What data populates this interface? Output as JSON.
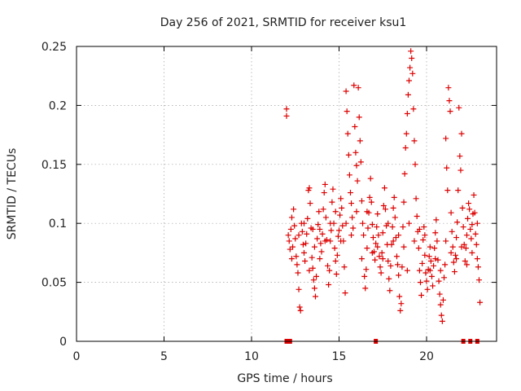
{
  "chart_data": {
    "type": "scatter",
    "title": "Day 256 of 2021, SRMTID for receiver ksu1",
    "xlabel": "GPS time / hours",
    "ylabel": "SRMTID / TECUs",
    "xlim": [
      0,
      24
    ],
    "ylim": [
      0,
      0.25
    ],
    "xticks": [
      0,
      5,
      10,
      15,
      20
    ],
    "xtick_labels": [
      "0",
      "5",
      "10",
      "15",
      "20"
    ],
    "yticks": [
      0,
      0.05,
      0.1,
      0.15,
      0.2,
      0.25
    ],
    "ytick_labels": [
      "0",
      "0.05",
      "0.1",
      "0.15",
      "0.2",
      "0.25"
    ],
    "grid": true,
    "marker": "+",
    "series": [
      {
        "name": "SRMTID",
        "color": "#dd0000",
        "points": [
          [
            12.0,
            0.197
          ],
          [
            12.0,
            0.191
          ],
          [
            12.1,
            0.09
          ],
          [
            12.15,
            0.085
          ],
          [
            12.2,
            0.078
          ],
          [
            12.25,
            0.095
          ],
          [
            12.3,
            0.105
          ],
          [
            12.35,
            0.08
          ],
          [
            12.4,
            0.112
          ],
          [
            12.45,
            0.098
          ],
          [
            12.5,
            0.087
          ],
          [
            12.55,
            0.072
          ],
          [
            12.6,
            0.065
          ],
          [
            12.65,
            0.058
          ],
          [
            12.7,
            0.044
          ],
          [
            12.75,
            0.029
          ],
          [
            12.8,
            0.026
          ],
          [
            12.85,
            0.1
          ],
          [
            12.9,
            0.093
          ],
          [
            12.95,
            0.082
          ],
          [
            13.0,
            0.075
          ],
          [
            13.05,
            0.068
          ],
          [
            13.1,
            0.083
          ],
          [
            13.15,
            0.091
          ],
          [
            13.2,
            0.104
          ],
          [
            13.25,
            0.128
          ],
          [
            13.3,
            0.13
          ],
          [
            13.35,
            0.117
          ],
          [
            13.4,
            0.096
          ],
          [
            13.45,
            0.071
          ],
          [
            13.5,
            0.062
          ],
          [
            13.55,
            0.052
          ],
          [
            13.6,
            0.045
          ],
          [
            13.65,
            0.038
          ],
          [
            13.7,
            0.055
          ],
          [
            13.75,
            0.087
          ],
          [
            13.8,
            0.099
          ],
          [
            13.85,
            0.11
          ],
          [
            13.9,
            0.095
          ],
          [
            13.95,
            0.083
          ],
          [
            14.0,
            0.076
          ],
          [
            14.05,
            0.091
          ],
          [
            14.1,
            0.112
          ],
          [
            14.15,
            0.126
          ],
          [
            14.2,
            0.133
          ],
          [
            14.25,
            0.105
          ],
          [
            14.3,
            0.086
          ],
          [
            14.35,
            0.064
          ],
          [
            14.4,
            0.048
          ],
          [
            14.45,
            0.06
          ],
          [
            14.5,
            0.085
          ],
          [
            14.55,
            0.094
          ],
          [
            14.6,
            0.118
          ],
          [
            14.65,
            0.129
          ],
          [
            14.7,
            0.1
          ],
          [
            14.75,
            0.079
          ],
          [
            14.8,
            0.068
          ],
          [
            14.85,
            0.057
          ],
          [
            14.9,
            0.073
          ],
          [
            14.95,
            0.089
          ],
          [
            15.0,
            0.094
          ],
          [
            15.05,
            0.107
          ],
          [
            15.1,
            0.121
          ],
          [
            15.15,
            0.113
          ],
          [
            15.2,
            0.098
          ],
          [
            15.25,
            0.085
          ],
          [
            15.3,
            0.063
          ],
          [
            15.35,
            0.041
          ],
          [
            15.4,
            0.212
          ],
          [
            15.45,
            0.195
          ],
          [
            15.5,
            0.176
          ],
          [
            15.55,
            0.158
          ],
          [
            15.6,
            0.141
          ],
          [
            15.65,
            0.126
          ],
          [
            15.7,
            0.117
          ],
          [
            15.75,
            0.105
          ],
          [
            15.8,
            0.096
          ],
          [
            15.85,
            0.217
          ],
          [
            15.9,
            0.182
          ],
          [
            15.95,
            0.16
          ],
          [
            16.0,
            0.149
          ],
          [
            16.05,
            0.136
          ],
          [
            16.1,
            0.215
          ],
          [
            16.15,
            0.19
          ],
          [
            16.2,
            0.17
          ],
          [
            16.25,
            0.152
          ],
          [
            16.3,
            0.119
          ],
          [
            16.35,
            0.1
          ],
          [
            16.4,
            0.09
          ],
          [
            16.45,
            0.055
          ],
          [
            16.5,
            0.045
          ],
          [
            16.55,
            0.061
          ],
          [
            16.6,
            0.079
          ],
          [
            16.65,
            0.096
          ],
          [
            16.7,
            0.109
          ],
          [
            16.75,
            0.122
          ],
          [
            16.8,
            0.138
          ],
          [
            16.85,
            0.118
          ],
          [
            16.9,
            0.099
          ],
          [
            16.95,
            0.088
          ],
          [
            17.0,
            0.076
          ],
          [
            17.05,
            0.069
          ],
          [
            17.1,
            0.083
          ],
          [
            17.15,
            0.097
          ],
          [
            17.2,
            0.108
          ],
          [
            17.25,
            0.09
          ],
          [
            17.3,
            0.072
          ],
          [
            17.35,
            0.063
          ],
          [
            17.4,
            0.058
          ],
          [
            17.45,
            0.075
          ],
          [
            17.5,
            0.092
          ],
          [
            17.55,
            0.115
          ],
          [
            17.6,
            0.13
          ],
          [
            17.65,
            0.112
          ],
          [
            17.7,
            0.098
          ],
          [
            17.75,
            0.082
          ],
          [
            17.8,
            0.068
          ],
          [
            17.85,
            0.053
          ],
          [
            17.9,
            0.043
          ],
          [
            17.95,
            0.064
          ],
          [
            18.0,
            0.082
          ],
          [
            18.05,
            0.097
          ],
          [
            18.1,
            0.113
          ],
          [
            18.15,
            0.122
          ],
          [
            18.2,
            0.105
          ],
          [
            18.25,
            0.088
          ],
          [
            18.3,
            0.072
          ],
          [
            18.35,
            0.065
          ],
          [
            18.4,
            0.056
          ],
          [
            18.45,
            0.038
          ],
          [
            18.5,
            0.026
          ],
          [
            18.55,
            0.032
          ],
          [
            18.6,
            0.063
          ],
          [
            18.65,
            0.097
          ],
          [
            18.7,
            0.118
          ],
          [
            18.75,
            0.142
          ],
          [
            18.8,
            0.164
          ],
          [
            18.85,
            0.176
          ],
          [
            18.9,
            0.193
          ],
          [
            18.95,
            0.209
          ],
          [
            19.0,
            0.221
          ],
          [
            19.05,
            0.232
          ],
          [
            19.1,
            0.246
          ],
          [
            19.15,
            0.24
          ],
          [
            19.2,
            0.227
          ],
          [
            19.25,
            0.197
          ],
          [
            19.3,
            0.17
          ],
          [
            19.35,
            0.15
          ],
          [
            19.4,
            0.121
          ],
          [
            19.45,
            0.106
          ],
          [
            19.5,
            0.093
          ],
          [
            19.55,
            0.079
          ],
          [
            19.6,
            0.06
          ],
          [
            19.65,
            0.05
          ],
          [
            19.7,
            0.039
          ],
          [
            19.75,
            0.066
          ],
          [
            19.8,
            0.086
          ],
          [
            19.85,
            0.097
          ],
          [
            19.9,
            0.073
          ],
          [
            19.95,
            0.058
          ],
          [
            20.0,
            0.051
          ],
          [
            20.05,
            0.044
          ],
          [
            20.1,
            0.061
          ],
          [
            20.15,
            0.072
          ],
          [
            20.2,
            0.08
          ],
          [
            20.25,
            0.068
          ],
          [
            20.3,
            0.055
          ],
          [
            20.35,
            0.047
          ],
          [
            20.4,
            0.064
          ],
          [
            20.45,
            0.079
          ],
          [
            20.5,
            0.092
          ],
          [
            20.55,
            0.103
          ],
          [
            20.6,
            0.085
          ],
          [
            20.65,
            0.069
          ],
          [
            20.7,
            0.051
          ],
          [
            20.75,
            0.04
          ],
          [
            20.8,
            0.031
          ],
          [
            20.85,
            0.022
          ],
          [
            20.9,
            0.017
          ],
          [
            20.95,
            0.035
          ],
          [
            21.0,
            0.054
          ],
          [
            21.05,
            0.065
          ],
          [
            21.1,
            0.172
          ],
          [
            21.15,
            0.147
          ],
          [
            21.2,
            0.128
          ],
          [
            21.25,
            0.215
          ],
          [
            21.3,
            0.204
          ],
          [
            21.35,
            0.195
          ],
          [
            21.4,
            0.109
          ],
          [
            21.45,
            0.093
          ],
          [
            21.5,
            0.08
          ],
          [
            21.55,
            0.067
          ],
          [
            21.6,
            0.059
          ],
          [
            21.65,
            0.073
          ],
          [
            21.7,
            0.088
          ],
          [
            21.75,
            0.101
          ],
          [
            21.8,
            0.128
          ],
          [
            21.85,
            0.198
          ],
          [
            21.9,
            0.157
          ],
          [
            21.95,
            0.145
          ],
          [
            22.0,
            0.176
          ],
          [
            22.05,
            0.113
          ],
          [
            22.1,
            0.097
          ],
          [
            22.15,
            0.082
          ],
          [
            22.2,
            0.068
          ],
          [
            22.25,
            0.079
          ],
          [
            22.3,
            0.09
          ],
          [
            22.35,
            0.104
          ],
          [
            22.4,
            0.117
          ],
          [
            22.45,
            0.112
          ],
          [
            22.5,
            0.095
          ],
          [
            22.55,
            0.087
          ],
          [
            22.6,
            0.099
          ],
          [
            22.65,
            0.108
          ],
          [
            22.7,
            0.124
          ],
          [
            22.75,
            0.109
          ],
          [
            22.8,
            0.091
          ],
          [
            22.85,
            0.082
          ],
          [
            22.9,
            0.07
          ],
          [
            22.95,
            0.063
          ],
          [
            23.0,
            0.052
          ],
          [
            23.05,
            0.033
          ],
          [
            12.3,
            0.07
          ],
          [
            12.7,
            0.09
          ],
          [
            13.0,
            0.1
          ],
          [
            13.3,
            0.06
          ],
          [
            13.6,
            0.08
          ],
          [
            13.9,
            0.07
          ],
          [
            14.2,
            0.085
          ],
          [
            14.5,
            0.1
          ],
          [
            14.8,
            0.11
          ],
          [
            15.1,
            0.085
          ],
          [
            15.4,
            0.1
          ],
          [
            15.7,
            0.09
          ],
          [
            16.0,
            0.11
          ],
          [
            16.3,
            0.07
          ],
          [
            16.6,
            0.11
          ],
          [
            16.9,
            0.075
          ],
          [
            17.2,
            0.08
          ],
          [
            17.5,
            0.07
          ],
          [
            17.8,
            0.1
          ],
          [
            18.1,
            0.085
          ],
          [
            18.4,
            0.09
          ],
          [
            18.7,
            0.08
          ],
          [
            19.0,
            0.1
          ],
          [
            19.3,
            0.085
          ],
          [
            19.6,
            0.095
          ],
          [
            19.9,
            0.09
          ],
          [
            20.2,
            0.06
          ],
          [
            20.5,
            0.07
          ],
          [
            20.8,
            0.06
          ],
          [
            21.1,
            0.085
          ],
          [
            21.4,
            0.075
          ],
          [
            21.7,
            0.07
          ],
          [
            22.0,
            0.08
          ],
          [
            22.3,
            0.065
          ],
          [
            22.6,
            0.075
          ],
          [
            22.9,
            0.1
          ],
          [
            13.5,
            0.095
          ],
          [
            18.9,
            0.06
          ]
        ]
      }
    ],
    "baseline_markers_x": [
      12.0,
      12.1,
      12.2,
      17.1,
      22.1,
      22.5,
      22.9
    ]
  }
}
